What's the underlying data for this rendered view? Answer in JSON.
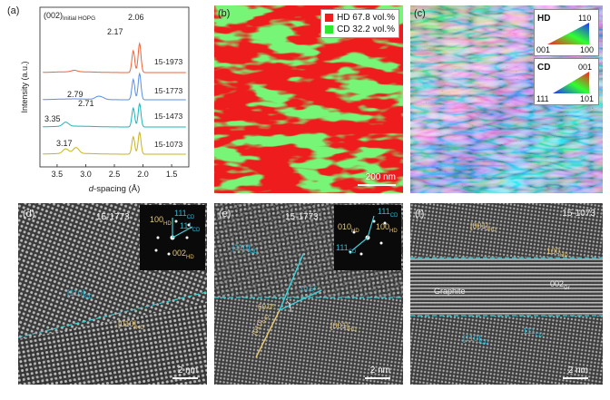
{
  "panels": {
    "a": {
      "label": "(a)",
      "legend_title": "(002)",
      "legend_sub": "Initial HOPG",
      "xlabel_italic": "d",
      "xlabel_rest": "-spacing (Å)",
      "ylabel": "Intensity (a.u.)",
      "xticks": [
        "3.5",
        "3.0",
        "2.5",
        "2.0",
        "1.5"
      ],
      "peak_labels": [
        "2.06",
        "2.17",
        "2.79",
        "2.71",
        "3.35",
        "3.17"
      ],
      "series_labels": [
        "15-1973",
        "15-1773",
        "15-1473",
        "15-1073"
      ]
    },
    "b": {
      "label": "(b)",
      "legend": [
        {
          "text": "HD 67.8 vol.%",
          "color": "#ee1c1c"
        },
        {
          "text": "CD 32.2 vol.%",
          "color": "#2ee82e"
        }
      ],
      "scale": "200 nm"
    },
    "c": {
      "label": "(c)",
      "hd": {
        "title": "HD",
        "top": "110",
        "left": "001",
        "right": "100"
      },
      "cd": {
        "title": "CD",
        "top": "001",
        "left": "111",
        "right": "101"
      }
    },
    "d": {
      "label": "(d)",
      "sample": "15-1773",
      "fft": {
        "a": "100",
        "a_sub": "HD",
        "b": "111",
        "b_sub": "CD",
        "c": "111",
        "c_sub": "CD",
        "d": "002",
        "d_sub": "HD"
      },
      "ann_cd": "[110]",
      "ann_cd_sub": "CD",
      "ann_hd": "[010]",
      "ann_hd_sub": "HD",
      "scale": "2 nm"
    },
    "e": {
      "label": "(e)",
      "sample": "15-1773",
      "fft": {
        "a": "010",
        "a_sub": "HD",
        "b": "111",
        "b_sub": "CD",
        "c": "100",
        "c_sub": "HD",
        "d": "111",
        "d_sub": "CD"
      },
      "ann_cd": "[110]",
      "ann_cd_sub": "CD",
      "ann_hd": "[001]",
      "ann_hd_sub": "HD",
      "ann_mid1": "70.5°",
      "ann_mid2": "60.0°",
      "ann_mid3": "[010]",
      "ann_mid3_sub": "HD",
      "scale": "2 nm"
    },
    "f": {
      "label": "(f)",
      "sample": "15-1073",
      "ann_top": "[001]",
      "ann_top_sub": "HD",
      "ann_100": "100",
      "ann_100_sub": "HD",
      "ann_graphite": "Graphite",
      "ann_002": "002",
      "ann_002_sub": "Gr",
      "ann_110": "[110]",
      "ann_110_sub": "CD",
      "ann_111": "111",
      "ann_111_sub": "CD",
      "scale": "2 nm"
    }
  },
  "chart_data": {
    "type": "line",
    "xlabel": "d-spacing (Å)",
    "ylabel": "Intensity (a.u.)",
    "xlim": [
      3.8,
      1.2
    ],
    "series": [
      {
        "name": "15-1973",
        "color": "#f0633a",
        "offset": 3,
        "peaks": [
          [
            2.06,
            1.0
          ],
          [
            2.17,
            0.75
          ],
          [
            3.2,
            0.05
          ]
        ]
      },
      {
        "name": "15-1773",
        "color": "#5b8ee6",
        "offset": 2,
        "peaks": [
          [
            2.06,
            0.9
          ],
          [
            2.17,
            0.7
          ],
          [
            2.79,
            0.09
          ],
          [
            2.71,
            0.06
          ]
        ]
      },
      {
        "name": "15-1473",
        "color": "#1bb6b8",
        "offset": 1,
        "peaks": [
          [
            2.06,
            0.8
          ],
          [
            2.17,
            0.65
          ],
          [
            3.35,
            0.14
          ]
        ]
      },
      {
        "name": "15-1073",
        "color": "#c8b41c",
        "offset": 0,
        "peaks": [
          [
            2.06,
            0.75
          ],
          [
            2.17,
            0.6
          ],
          [
            3.17,
            0.2
          ],
          [
            3.35,
            0.16
          ]
        ]
      }
    ]
  }
}
